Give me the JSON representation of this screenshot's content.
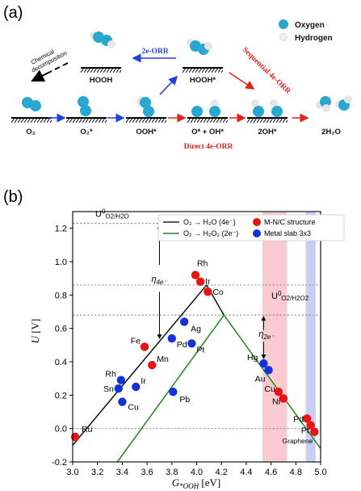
{
  "panel_a": {
    "label": "(a)",
    "legend": {
      "oxygen": "Oxygen",
      "hydrogen": "Hydrogen"
    },
    "species": [
      "O₂",
      "O₂*",
      "OOH*",
      "O* + OH*",
      "2OH*",
      "2H₂O",
      "HOOH",
      "HOOH*"
    ],
    "arrows": {
      "two_e": "2e-ORR",
      "sequential": "Sequential 4e-ORR",
      "direct": "Direct 4e-ORR",
      "chemical": [
        "Chemical",
        "decomposition"
      ]
    },
    "colors": {
      "oxygen": "#2aa7d1",
      "hydrogen": "#e9e9e9",
      "blue_arrow": "#1f3fe0",
      "red_arrow": "#e2221f"
    }
  },
  "panel_b": {
    "label": "(b)"
  },
  "chart_data": {
    "type": "scatter",
    "xlabel": "G *OOH [eV]",
    "ylabel": "U [V]",
    "xlim": [
      3.0,
      5.0
    ],
    "ylim": [
      -0.2,
      1.3
    ],
    "xticks": [
      "3.0",
      "3.2",
      "3.4",
      "3.6",
      "3.8",
      "4.0",
      "4.2",
      "4.4",
      "4.6",
      "4.8",
      "5.0"
    ],
    "yticks": [
      "-0.2",
      "0.0",
      "0.2",
      "0.4",
      "0.6",
      "0.8",
      "1.0",
      "1.2"
    ],
    "reference_lines": [
      {
        "label": "U0 O2/H2O",
        "y": 1.23
      },
      {
        "label": "",
        "y": 0.86
      },
      {
        "label": "U0 O2/H2O2",
        "y": 0.68
      }
    ],
    "eta_labels": [
      "η4e-",
      "η2e-"
    ],
    "legend_lines": [
      {
        "name": "O₂ → H₂O (4e⁻)",
        "color": "#222222"
      },
      {
        "name": "O₂ → H₂O₂ (2e⁻)",
        "color": "#1f8a1f"
      }
    ],
    "legend_markers": [
      {
        "name": "M-N/C structure",
        "color": "#e8140f"
      },
      {
        "name": "Metal slab 3x3",
        "color": "#1432d9"
      }
    ],
    "bands": [
      {
        "x0": 4.53,
        "x1": 4.73,
        "color": "#f4b9bf"
      },
      {
        "x0": 4.88,
        "x1": 4.96,
        "color": "#b9bcf2"
      }
    ],
    "series": [
      {
        "name": "M-N/C structure",
        "color": "#e8140f",
        "points": [
          {
            "label": "Ru",
            "x": 3.02,
            "y": -0.05
          },
          {
            "label": "Fe",
            "x": 3.58,
            "y": 0.49
          },
          {
            "label": "Mn",
            "x": 3.64,
            "y": 0.38
          },
          {
            "label": "Rh",
            "x": 3.99,
            "y": 0.92
          },
          {
            "label": "Ir",
            "x": 4.03,
            "y": 0.88
          },
          {
            "label": "Co",
            "x": 4.09,
            "y": 0.82
          },
          {
            "label": "Cu",
            "x": 4.66,
            "y": 0.22
          },
          {
            "label": "Ni",
            "x": 4.7,
            "y": 0.18
          },
          {
            "label": "Pd",
            "x": 4.89,
            "y": 0.06
          },
          {
            "label": "Pt",
            "x": 4.92,
            "y": 0.02
          },
          {
            "label": "Graphene",
            "x": 4.95,
            "y": -0.02
          }
        ]
      },
      {
        "name": "Metal slab 3x3",
        "color": "#1432d9",
        "points": [
          {
            "label": "Rh",
            "x": 3.39,
            "y": 0.29
          },
          {
            "label": "Sn",
            "x": 3.37,
            "y": 0.24
          },
          {
            "label": "Ir",
            "x": 3.51,
            "y": 0.25
          },
          {
            "label": "Cu",
            "x": 3.4,
            "y": 0.16
          },
          {
            "label": "Pd",
            "x": 3.8,
            "y": 0.54
          },
          {
            "label": "Ag",
            "x": 3.9,
            "y": 0.64
          },
          {
            "label": "Pt",
            "x": 3.96,
            "y": 0.51
          },
          {
            "label": "Pb",
            "x": 3.81,
            "y": 0.22
          },
          {
            "label": "Hg",
            "x": 4.54,
            "y": 0.39
          },
          {
            "label": "Au",
            "x": 4.58,
            "y": 0.35
          }
        ]
      }
    ]
  }
}
